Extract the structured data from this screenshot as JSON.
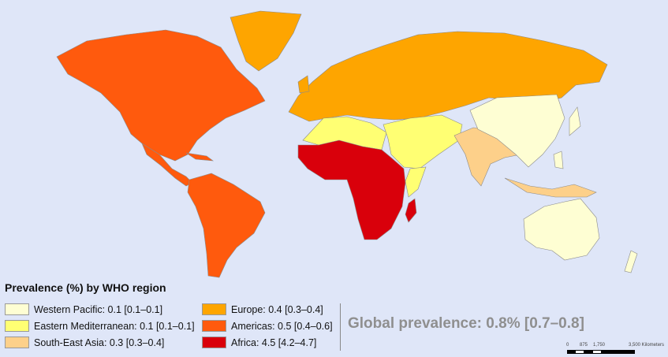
{
  "legend": {
    "title": "Prevalence (%) by WHO region",
    "items": [
      {
        "label": "Western Pacific: 0.1 [0.1–0.1]",
        "color": "#fefed3"
      },
      {
        "label": "Eastern Mediterranean: 0.1 [0.1–0.1]",
        "color": "#ffff73"
      },
      {
        "label": "South-East Asia: 0.3 [0.3–0.4]",
        "color": "#fdd08a"
      },
      {
        "label": "Europe: 0.4 [0.3–0.4]",
        "color": "#fea500"
      },
      {
        "label": "Americas: 0.5 [0.4–0.6]",
        "color": "#ff5a0d"
      },
      {
        "label": "Africa: 4.5 [4.2–4.7]",
        "color": "#d9000b"
      }
    ]
  },
  "global_prevalence": "Global prevalence: 0.8% [0.7–0.8]",
  "scale_bar": {
    "ticks": [
      "0",
      "875",
      "1,750",
      "3,500 Kilometers"
    ]
  },
  "regions": {
    "western_pacific": 0.1,
    "eastern_mediterranean": 0.1,
    "south_east_asia": 0.3,
    "europe": 0.4,
    "americas": 0.5,
    "africa": 4.5
  }
}
